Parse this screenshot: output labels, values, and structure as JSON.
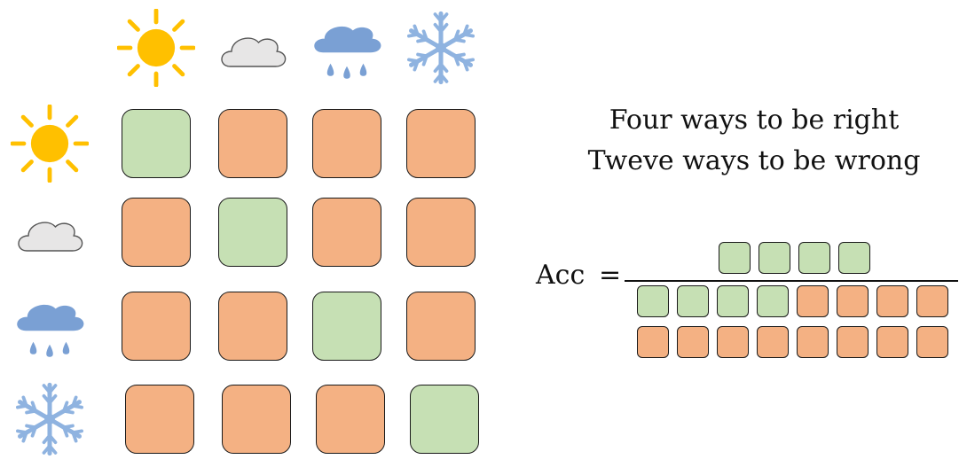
{
  "caption": {
    "line1": "Four ways to be right",
    "line2": "Tweve ways to be wrong"
  },
  "formula": {
    "label": "Acc",
    "equals": "="
  },
  "colors": {
    "correct": "#c6e0b4",
    "wrong": "#f4b183",
    "sun": "#ffc000",
    "cloud": "#e7e6e6",
    "rain_cloud": "#7aa0d4",
    "snow": "#8fb3e0"
  },
  "weather_classes": [
    "sun-icon",
    "cloud-icon",
    "rain-icon",
    "snowflake-icon"
  ],
  "matrix": [
    [
      "correct",
      "wrong",
      "wrong",
      "wrong"
    ],
    [
      "wrong",
      "correct",
      "wrong",
      "wrong"
    ],
    [
      "wrong",
      "wrong",
      "correct",
      "wrong"
    ],
    [
      "wrong",
      "wrong",
      "wrong",
      "correct"
    ]
  ],
  "numerator": [
    "correct",
    "correct",
    "correct",
    "correct"
  ],
  "denominator": [
    [
      "correct",
      "correct",
      "correct",
      "correct",
      "wrong",
      "wrong",
      "wrong",
      "wrong"
    ],
    [
      "wrong",
      "wrong",
      "wrong",
      "wrong",
      "wrong",
      "wrong",
      "wrong",
      "wrong"
    ]
  ]
}
